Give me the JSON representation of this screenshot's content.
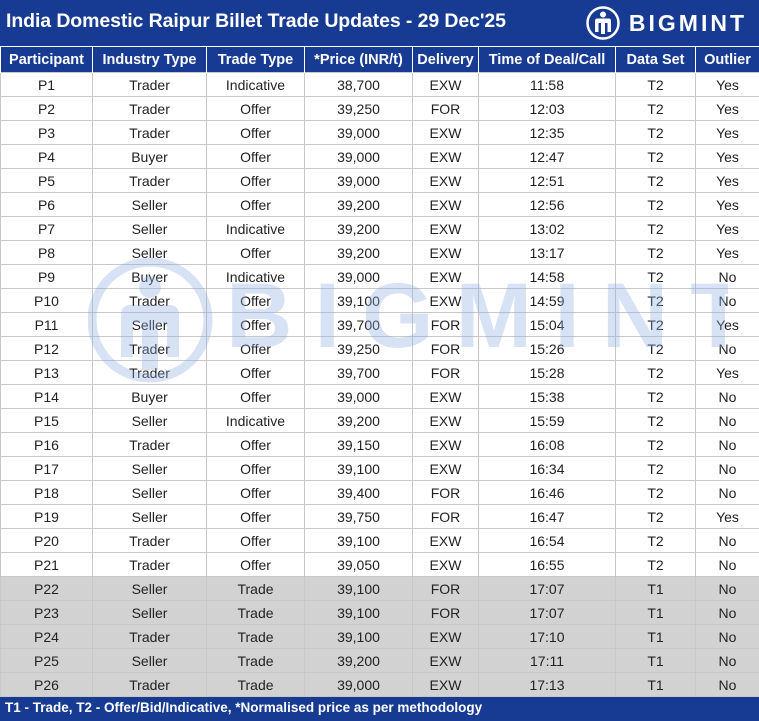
{
  "header": {
    "title": "India Domestic Raipur Billet Trade Updates - 29 Dec'25",
    "logo_text": "BIGMINT"
  },
  "watermark_text": "BIGMINT",
  "colors": {
    "brand_blue": "#173a92",
    "t1_row": "#d3d2d2",
    "watermark": "#8fb0e0"
  },
  "table": {
    "columns": [
      "Participant",
      "Industry Type",
      "Trade Type",
      "*Price (INR/t)",
      "Delivery",
      "Time of Deal/Call",
      "Data Set",
      "Outlier"
    ],
    "rows": [
      [
        "P1",
        "Trader",
        "Indicative",
        "38,700",
        "EXW",
        "11:58",
        "T2",
        "Yes"
      ],
      [
        "P2",
        "Trader",
        "Offer",
        "39,250",
        "FOR",
        "12:03",
        "T2",
        "Yes"
      ],
      [
        "P3",
        "Trader",
        "Offer",
        "39,000",
        "EXW",
        "12:35",
        "T2",
        "Yes"
      ],
      [
        "P4",
        "Buyer",
        "Offer",
        "39,000",
        "EXW",
        "12:47",
        "T2",
        "Yes"
      ],
      [
        "P5",
        "Trader",
        "Offer",
        "39,000",
        "EXW",
        "12:51",
        "T2",
        "Yes"
      ],
      [
        "P6",
        "Seller",
        "Offer",
        "39,200",
        "EXW",
        "12:56",
        "T2",
        "Yes"
      ],
      [
        "P7",
        "Seller",
        "Indicative",
        "39,200",
        "EXW",
        "13:02",
        "T2",
        "Yes"
      ],
      [
        "P8",
        "Seller",
        "Offer",
        "39,200",
        "EXW",
        "13:17",
        "T2",
        "Yes"
      ],
      [
        "P9",
        "Buyer",
        "Indicative",
        "39,000",
        "EXW",
        "14:58",
        "T2",
        "No"
      ],
      [
        "P10",
        "Trader",
        "Offer",
        "39,100",
        "EXW",
        "14:59",
        "T2",
        "No"
      ],
      [
        "P11",
        "Seller",
        "Offer",
        "39,700",
        "FOR",
        "15:04",
        "T2",
        "Yes"
      ],
      [
        "P12",
        "Trader",
        "Offer",
        "39,250",
        "FOR",
        "15:26",
        "T2",
        "No"
      ],
      [
        "P13",
        "Trader",
        "Offer",
        "39,700",
        "FOR",
        "15:28",
        "T2",
        "Yes"
      ],
      [
        "P14",
        "Buyer",
        "Offer",
        "39,000",
        "EXW",
        "15:38",
        "T2",
        "No"
      ],
      [
        "P15",
        "Seller",
        "Indicative",
        "39,200",
        "EXW",
        "15:59",
        "T2",
        "No"
      ],
      [
        "P16",
        "Trader",
        "Offer",
        "39,150",
        "EXW",
        "16:08",
        "T2",
        "No"
      ],
      [
        "P17",
        "Seller",
        "Offer",
        "39,100",
        "EXW",
        "16:34",
        "T2",
        "No"
      ],
      [
        "P18",
        "Seller",
        "Offer",
        "39,400",
        "FOR",
        "16:46",
        "T2",
        "No"
      ],
      [
        "P19",
        "Seller",
        "Offer",
        "39,750",
        "FOR",
        "16:47",
        "T2",
        "Yes"
      ],
      [
        "P20",
        "Trader",
        "Offer",
        "39,100",
        "EXW",
        "16:54",
        "T2",
        "No"
      ],
      [
        "P21",
        "Trader",
        "Offer",
        "39,050",
        "EXW",
        "16:55",
        "T2",
        "No"
      ],
      [
        "P22",
        "Seller",
        "Trade",
        "39,100",
        "FOR",
        "17:07",
        "T1",
        "No"
      ],
      [
        "P23",
        "Seller",
        "Trade",
        "39,100",
        "FOR",
        "17:07",
        "T1",
        "No"
      ],
      [
        "P24",
        "Trader",
        "Trade",
        "39,100",
        "EXW",
        "17:10",
        "T1",
        "No"
      ],
      [
        "P25",
        "Seller",
        "Trade",
        "39,200",
        "EXW",
        "17:11",
        "T1",
        "No"
      ],
      [
        "P26",
        "Trader",
        "Trade",
        "39,000",
        "EXW",
        "17:13",
        "T1",
        "No"
      ]
    ]
  },
  "footer": {
    "note": "T1 - Trade, T2 - Offer/Bid/Indicative, *Normalised price as per methodology"
  }
}
